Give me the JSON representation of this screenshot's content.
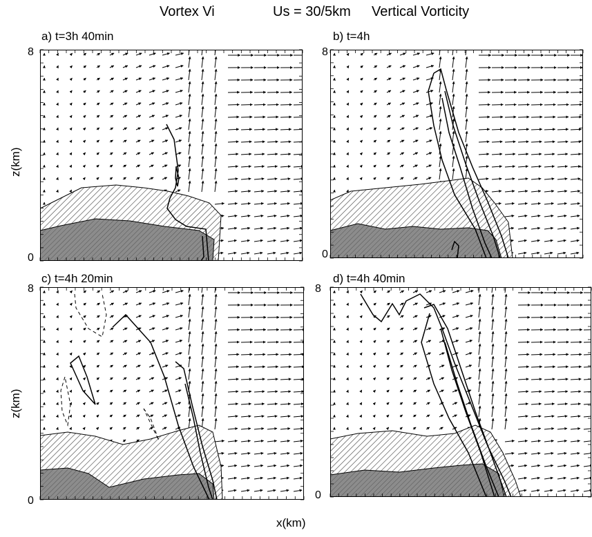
{
  "title": {
    "vortex": "Vortex   Vi",
    "shear": "Us = 30/5km",
    "field": "Vertical Vorticity"
  },
  "axes": {
    "ylabel": "z(km)",
    "xlabel": "x(km)",
    "ytick_top": "8",
    "ytick_bottom": "0"
  },
  "panels": [
    {
      "label": "a) t=3h 40min"
    },
    {
      "label": "b) t=4h"
    },
    {
      "label": "c) t=4h 20min"
    },
    {
      "label": "d) t=4h 40min"
    }
  ],
  "colors": {
    "shade": "#8c8c8c",
    "hatch": "#3a3a3a",
    "line": "#000000"
  }
}
